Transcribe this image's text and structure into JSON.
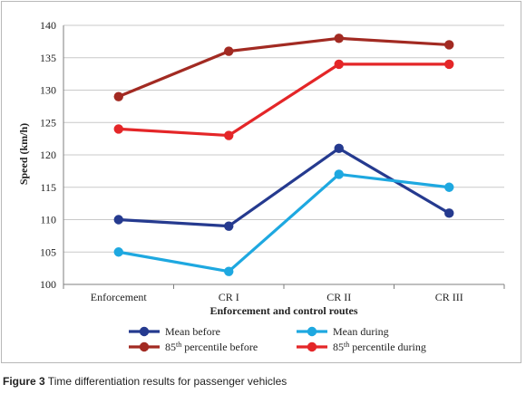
{
  "chart_data": {
    "type": "line",
    "categories": [
      "Enforcement",
      "CR I",
      "CR II",
      "CR III"
    ],
    "xlabel": "Enforcement and control routes",
    "ylabel": "Speed (km/h)",
    "ylim": [
      100,
      140
    ],
    "yticks": [
      100,
      105,
      110,
      115,
      120,
      125,
      130,
      135,
      140
    ],
    "grid": true,
    "legend_placement": "bottom",
    "series": [
      {
        "name": "Mean before",
        "color": "#253a8f",
        "values": [
          110,
          109,
          121,
          111
        ]
      },
      {
        "name": "Mean during",
        "color": "#1ea8e0",
        "values": [
          105,
          102,
          117,
          115
        ]
      },
      {
        "name": "85",
        "sup": "th",
        "suffix": " percentile before",
        "color": "#a22a22",
        "values": [
          129,
          136,
          138,
          137
        ]
      },
      {
        "name": "85",
        "sup": "th",
        "suffix": " percentile during",
        "color": "#e42628",
        "values": [
          124,
          123,
          134,
          134
        ]
      }
    ]
  },
  "caption": {
    "figure_label": "Figure 3",
    "text": " Time differentiation results for passenger vehicles"
  }
}
